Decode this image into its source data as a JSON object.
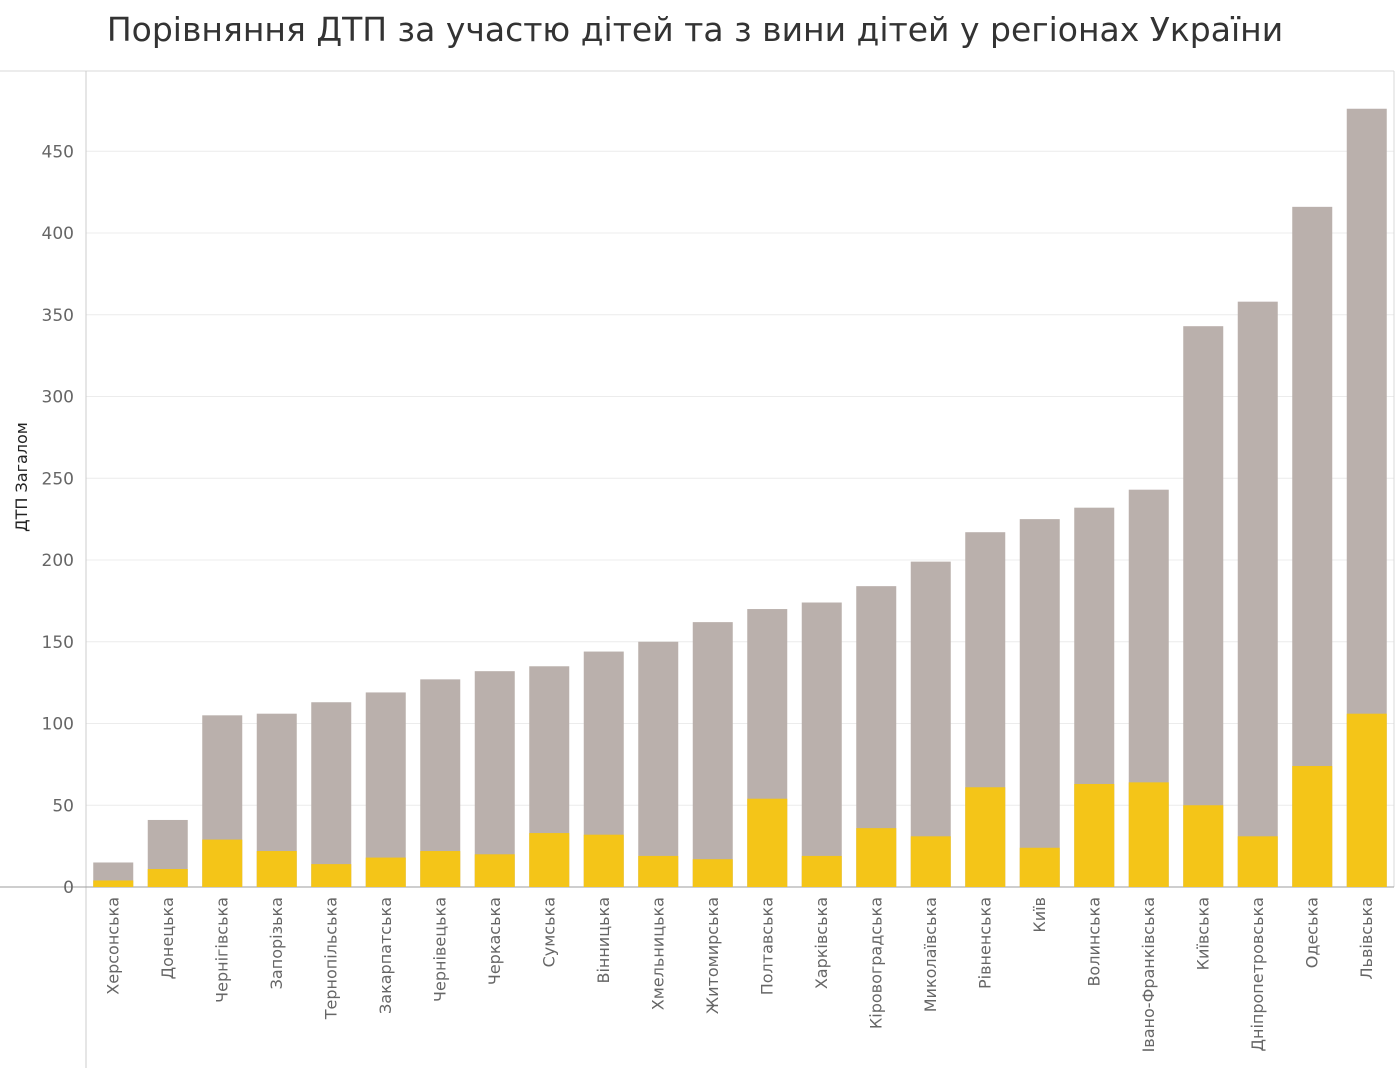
{
  "chart_data": {
    "type": "bar",
    "title": "Порівняння ДТП за участю дітей та з вини дітей у регіонах України",
    "xlabel": "",
    "ylabel": "ДТП Загалом",
    "ylim": [
      0,
      475
    ],
    "yticks": [
      0,
      50,
      100,
      150,
      200,
      250,
      300,
      350,
      400,
      450
    ],
    "grid": true,
    "categories": [
      "Херсонська",
      "Донецька",
      "Чернігівська",
      "Запорізька",
      "Тернопільська",
      "Закарпатська",
      "Чернівецька",
      "Черкаська",
      "Сумська",
      "Вінницька",
      "Хмельницька",
      "Житомирська",
      "Полтавська",
      "Харківська",
      "Кіровоградська",
      "Миколаївська",
      "Рівненська",
      "Київ",
      "Волинська",
      "Івано-Франківська",
      "Київська",
      "Дніпропетровська",
      "Одеська",
      "Львівська"
    ],
    "series": [
      {
        "values": [
          15,
          41,
          105,
          106,
          113,
          119,
          127,
          132,
          135,
          144,
          150,
          162,
          170,
          174,
          184,
          199,
          217,
          225,
          232,
          243,
          343,
          358,
          416,
          476
        ],
        "color": "#bab0ac"
      },
      {
        "values": [
          4,
          11,
          29,
          22,
          14,
          18,
          22,
          20,
          33,
          32,
          19,
          17,
          54,
          19,
          36,
          31,
          61,
          24,
          63,
          64,
          50,
          31,
          74,
          106
        ],
        "color": "#f4c518"
      }
    ]
  }
}
